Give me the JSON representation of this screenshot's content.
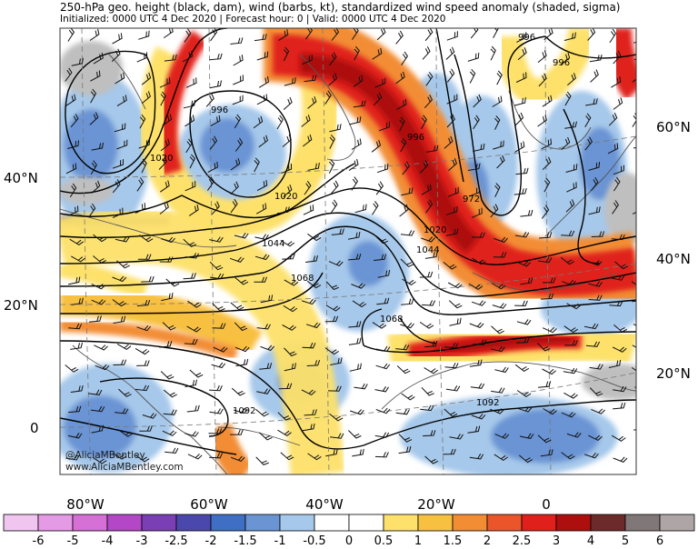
{
  "header": {
    "title": "250-hPa geo. height (black, dam), wind (barbs, kt), standardized wind speed anomaly (shaded, sigma)",
    "subtitle": "Initialized: 0000 UTC 4 Dec 2020 | Forecast hour: 0 | Valid: 0000 UTC 4 Dec 2020"
  },
  "credits": [
    "@AliciaMBentley",
    "www.AliciaMBentley.com"
  ],
  "lat_labels_left": [
    "40°N",
    "20°N",
    "0"
  ],
  "lat_labels_right": [
    "60°N",
    "40°N",
    "20°N"
  ],
  "lon_labels": [
    "80°W",
    "60°W",
    "40°W",
    "20°W",
    "0"
  ],
  "contour_labels": [
    "996",
    "1020",
    "996",
    "1020",
    "1044",
    "1068",
    "996",
    "972",
    "1020",
    "1044",
    "1068",
    "996",
    "1092",
    "1092"
  ],
  "colorbar": {
    "labels": [
      "-6",
      "-5",
      "-4",
      "-3",
      "-2.5",
      "-2",
      "-1.5",
      "-1",
      "-0.5",
      "0",
      "0.5",
      "1",
      "1.5",
      "2",
      "2.5",
      "3",
      "4",
      "5",
      "6"
    ],
    "colors": [
      "#f0c6f0",
      "#e59ae5",
      "#d66fd6",
      "#b347c7",
      "#7a3fb4",
      "#4b48ad",
      "#3f6fc4",
      "#6a94d4",
      "#a6c8ea",
      "#ffffff",
      "#ffffff",
      "#fde16b",
      "#f8c041",
      "#f28d34",
      "#ea5529",
      "#e0201a",
      "#ad0f0f",
      "#6d2a2a",
      "#807878",
      "#aea6a6"
    ]
  },
  "colors": {
    "ocean_white": "#ffffff",
    "negative_light": "#a6c8ea",
    "negative_mid": "#6a94d4",
    "positive_yellow": "#fde16b",
    "positive_orange": "#f28d34",
    "positive_red": "#e0201a",
    "jet_dark_red": "#ad0f0f",
    "land_gray": "#bfbfbf"
  }
}
